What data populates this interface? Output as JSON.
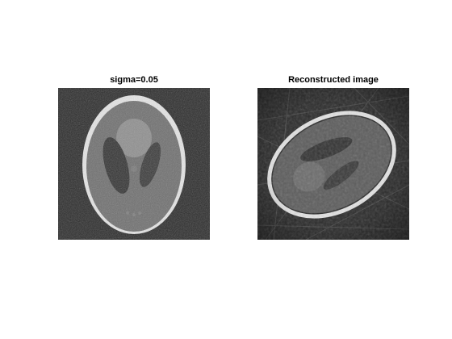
{
  "figure": {
    "left_panel": {
      "title": "sigma=0.05"
    },
    "right_panel": {
      "title": "Reconstructed image"
    }
  },
  "colors": {
    "figure_background": "#ffffff",
    "panel_background": "#2b2b2b",
    "ellipse_ring": "#e6e6e6",
    "head_fill": "#6f6f6f",
    "dark_lobes": "#333333",
    "bright_spot": "#8f8f8f"
  }
}
